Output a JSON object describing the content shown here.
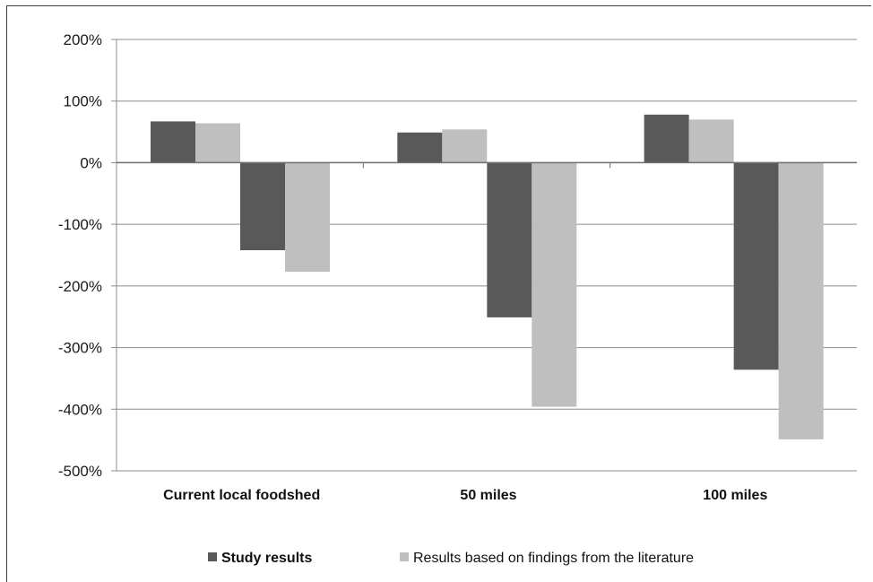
{
  "chart_data": {
    "type": "bar",
    "title": "",
    "xlabel": "",
    "ylabel": "",
    "categories": [
      "Current local foodshed",
      "50 miles",
      "100 miles"
    ],
    "y_ticks": [
      "200%",
      "100%",
      "0%",
      "-100%",
      "-200%",
      "-300%",
      "-400%",
      "-500%"
    ],
    "ylim": [
      -500,
      200
    ],
    "grid": true,
    "legend_position": "bottom",
    "series": [
      {
        "name": "Study results",
        "color": "#595959",
        "values": [
          67,
          49,
          78
        ],
        "group": 0
      },
      {
        "name": "Results based on findings from the literature",
        "color": "#bfbfbf",
        "values": [
          64,
          54,
          70
        ],
        "group": 0
      },
      {
        "name": "Study results",
        "color": "#595959",
        "values": [
          -142,
          -251,
          -336
        ],
        "group": 1
      },
      {
        "name": "Results based on findings from the literature",
        "color": "#bfbfbf",
        "values": [
          -177,
          -396,
          -449
        ],
        "group": 1
      }
    ],
    "legend": [
      {
        "label": "Study results",
        "color": "#595959",
        "bold": true
      },
      {
        "label": "Results based on findings from the literature",
        "color": "#bfbfbf",
        "bold": false
      }
    ]
  }
}
